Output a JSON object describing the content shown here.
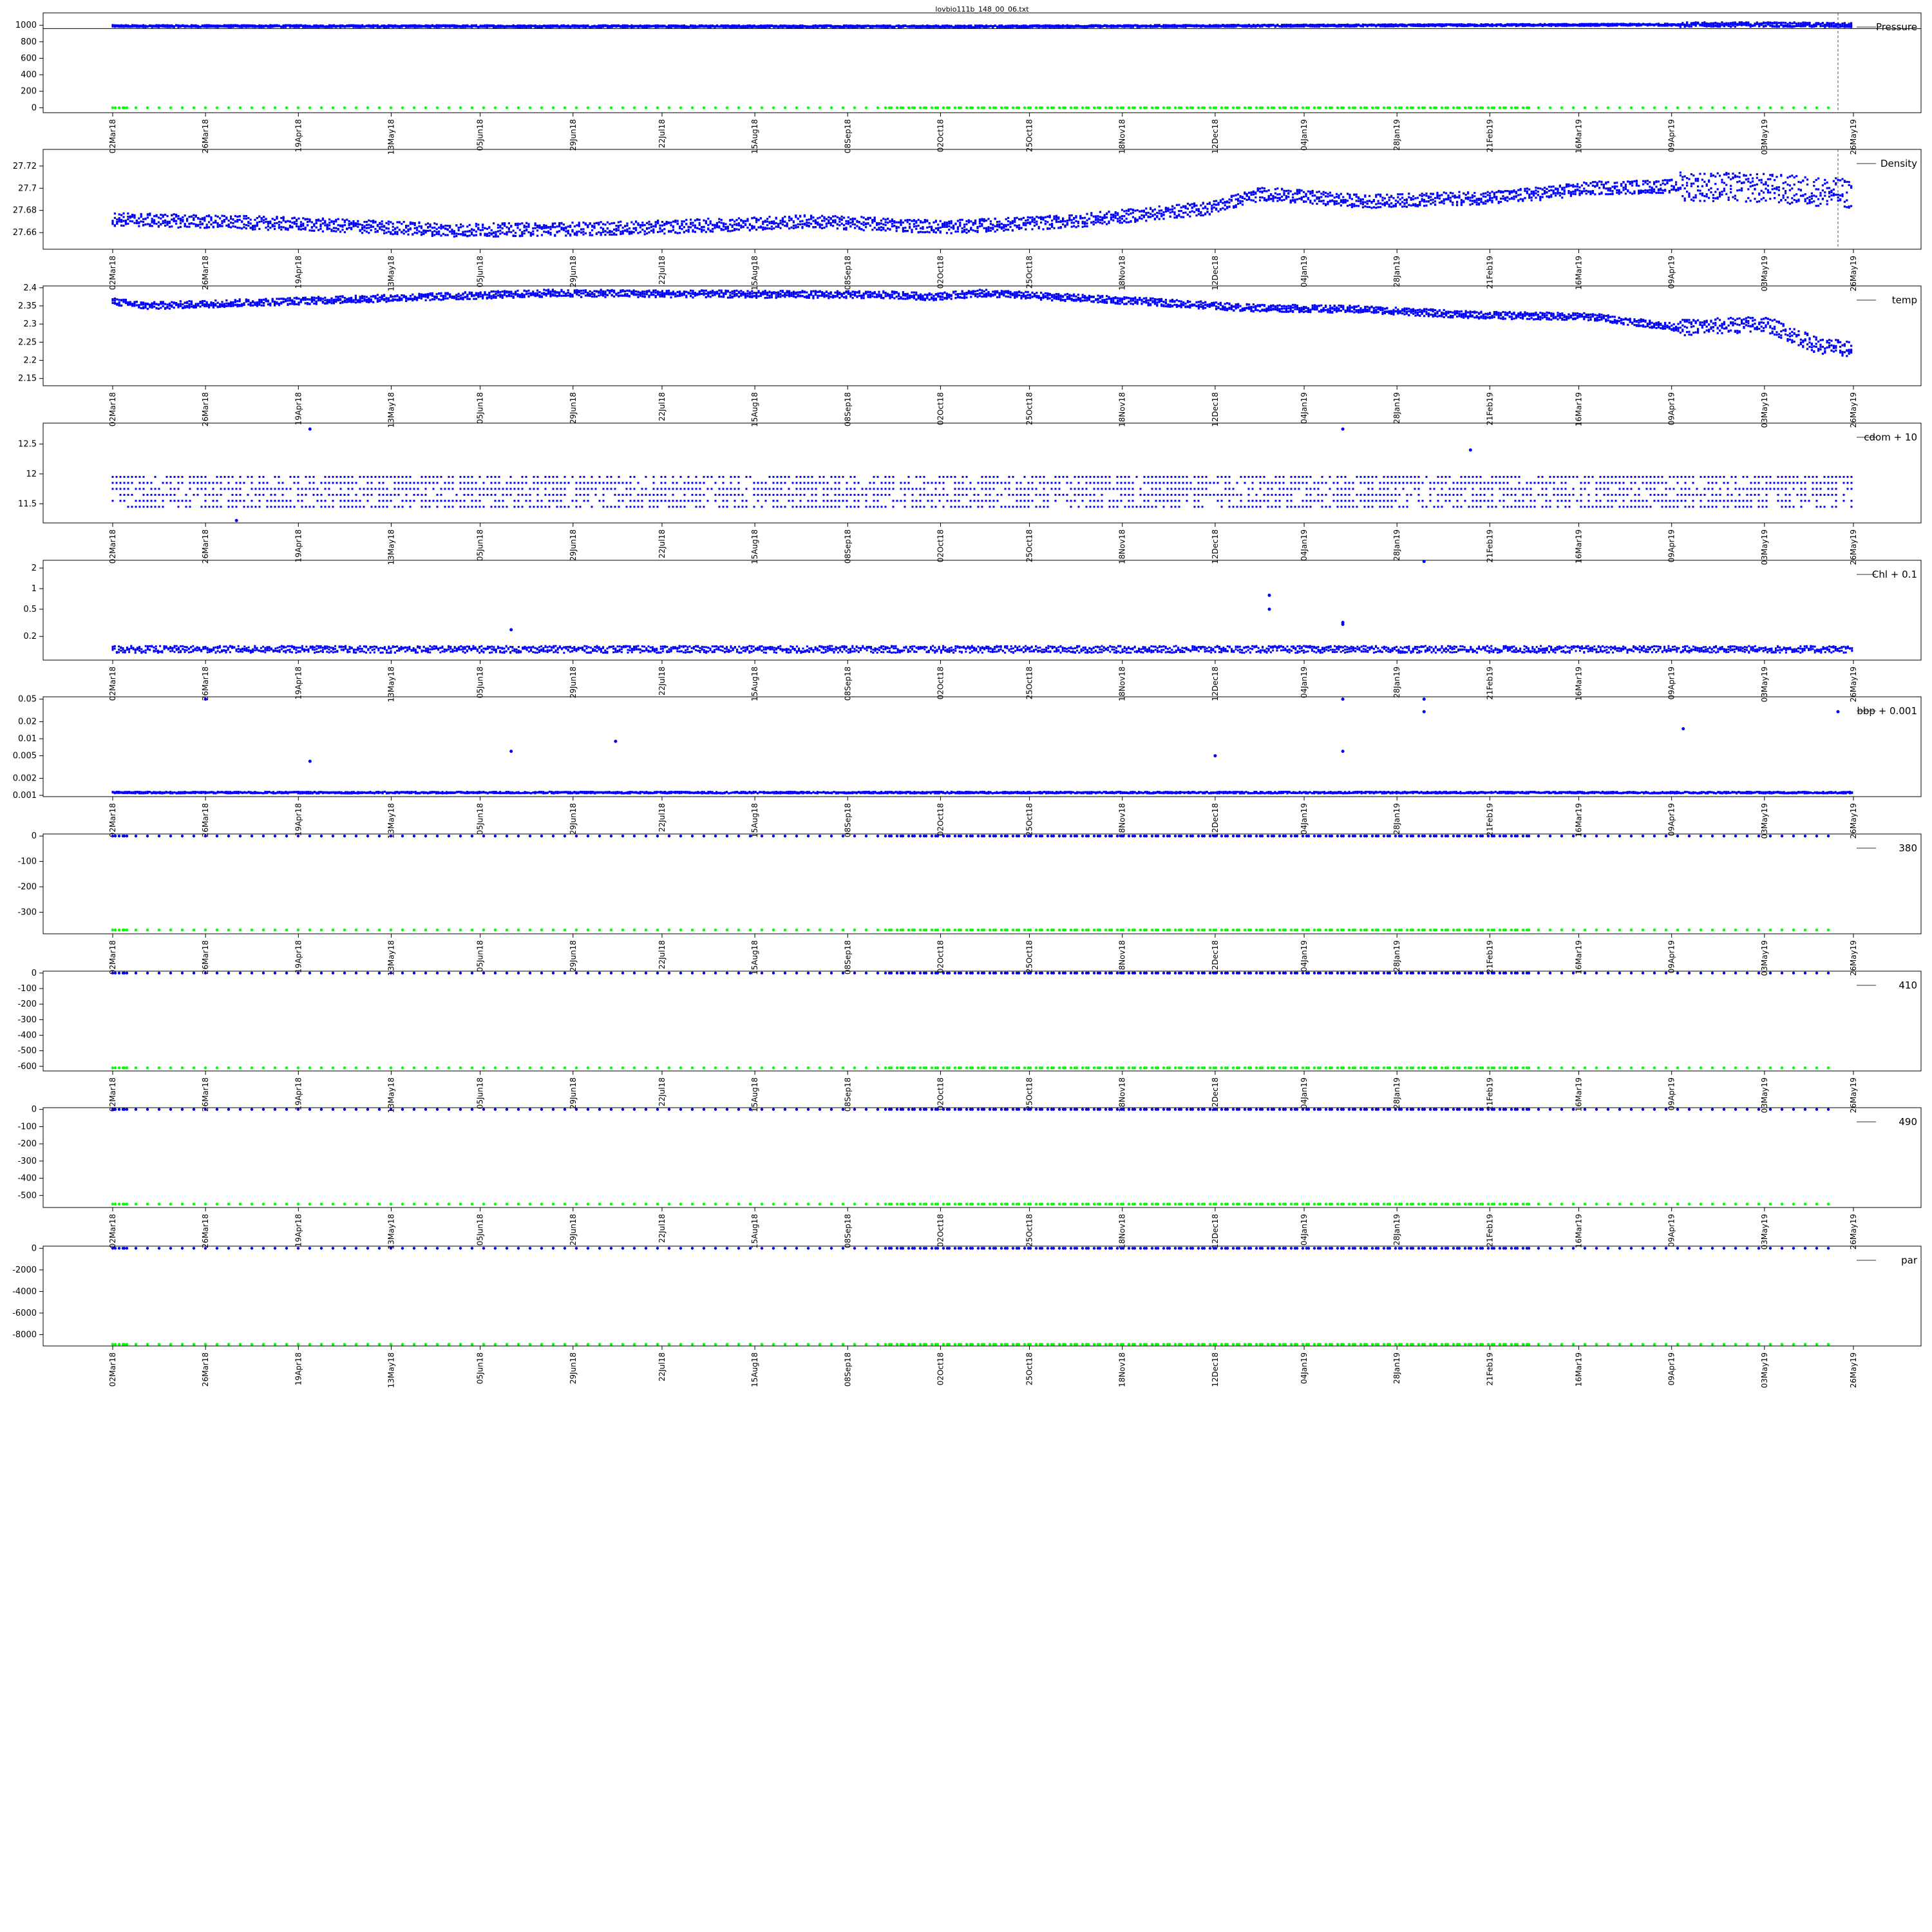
{
  "figure": {
    "title": "lovbio111b_148_00_06.txt"
  },
  "chart_data": [
    {
      "type": "scatter",
      "key": "pressure",
      "legend": "Pressure",
      "yticks": [
        0,
        200,
        400,
        600,
        800,
        1000
      ],
      "ylim": [
        -60,
        1150
      ],
      "hline": 960,
      "vline": "2019-05-22",
      "series": [
        {
          "color": "#0000ff",
          "pattern": "band",
          "base": 990,
          "spread": 25,
          "trend": [
            [
              0,
              990
            ],
            [
              0.5,
              985
            ],
            [
              0.95,
              1010
            ],
            [
              1,
              1000
            ]
          ]
        },
        {
          "color": "#00ff00",
          "pattern": "sparse",
          "value": 0
        }
      ]
    },
    {
      "type": "scatter",
      "key": "density",
      "legend": "Density",
      "yticks": [
        27.66,
        27.68,
        27.7,
        27.72
      ],
      "ylim": [
        27.645,
        27.735
      ],
      "vline": "2019-05-22",
      "series": [
        {
          "color": "#0000ff",
          "pattern": "band",
          "spread": 0.012,
          "trend": [
            [
              0,
              27.672
            ],
            [
              0.1,
              27.668
            ],
            [
              0.2,
              27.662
            ],
            [
              0.3,
              27.664
            ],
            [
              0.4,
              27.67
            ],
            [
              0.48,
              27.665
            ],
            [
              0.55,
              27.67
            ],
            [
              0.63,
              27.682
            ],
            [
              0.66,
              27.695
            ],
            [
              0.72,
              27.688
            ],
            [
              0.8,
              27.692
            ],
            [
              0.85,
              27.7
            ],
            [
              0.9,
              27.702
            ],
            [
              0.95,
              27.7
            ],
            [
              1,
              27.695
            ]
          ]
        }
      ]
    },
    {
      "type": "scatter",
      "key": "temp",
      "legend": "temp",
      "yticks": [
        2.15,
        2.2,
        2.25,
        2.3,
        2.35,
        2.4
      ],
      "ylim": [
        2.13,
        2.405
      ],
      "series": [
        {
          "color": "#0000ff",
          "pattern": "band",
          "spread": 0.02,
          "trend": [
            [
              0,
              2.362
            ],
            [
              0.02,
              2.35
            ],
            [
              0.15,
              2.37
            ],
            [
              0.25,
              2.385
            ],
            [
              0.45,
              2.38
            ],
            [
              0.47,
              2.375
            ],
            [
              0.5,
              2.385
            ],
            [
              0.6,
              2.36
            ],
            [
              0.65,
              2.345
            ],
            [
              0.72,
              2.34
            ],
            [
              0.78,
              2.325
            ],
            [
              0.85,
              2.32
            ],
            [
              0.9,
              2.29
            ],
            [
              0.95,
              2.3
            ],
            [
              0.98,
              2.24
            ],
            [
              1,
              2.23
            ]
          ]
        }
      ]
    },
    {
      "type": "scatter",
      "key": "cdom",
      "legend": "cdom + 10",
      "yticks": [
        11.5,
        12.0,
        12.5
      ],
      "ylim": [
        11.18,
        12.85
      ],
      "series": [
        {
          "color": "#0000ff",
          "pattern": "quantized",
          "levels": [
            11.45,
            11.55,
            11.65,
            11.75,
            11.85,
            11.95
          ]
        }
      ],
      "outliers": [
        [
          "2018-04-22",
          12.75
        ],
        [
          "2019-01-14",
          12.75
        ],
        [
          "2019-02-16",
          12.4
        ],
        [
          "2018-04-03",
          11.22
        ]
      ]
    },
    {
      "type": "scatter",
      "key": "chl",
      "legend": "Chl + 0.1",
      "log": true,
      "yticks": [
        0.2,
        0.5,
        1.0,
        2.0
      ],
      "ylim": [
        0.09,
        2.6
      ],
      "series": [
        {
          "color": "#0000ff",
          "pattern": "floor",
          "base": 0.13,
          "spread": 0.03
        }
      ],
      "outliers": [
        [
          "2018-12-26",
          0.8
        ],
        [
          "2018-12-26",
          0.5
        ],
        [
          "2019-01-14",
          0.3
        ],
        [
          "2019-01-14",
          0.32
        ],
        [
          "2019-02-04",
          2.5
        ],
        [
          "2018-06-13",
          0.25
        ]
      ]
    },
    {
      "type": "scatter",
      "key": "bbp",
      "legend": "bbp + 0.001",
      "log": true,
      "yticks": [
        0.001,
        0.002,
        0.005,
        0.01,
        0.02,
        0.05
      ],
      "ylim": [
        0.00095,
        0.055
      ],
      "series": [
        {
          "color": "#0000ff",
          "pattern": "floor",
          "base": 0.00112,
          "spread": 8e-05
        }
      ],
      "outliers": [
        [
          "2018-03-26",
          0.05
        ],
        [
          "2019-01-14",
          0.05
        ],
        [
          "2019-02-04",
          0.05
        ],
        [
          "2019-02-04",
          0.03
        ],
        [
          "2019-05-22",
          0.03
        ],
        [
          "2019-04-12",
          0.015
        ],
        [
          "2018-06-13",
          0.006
        ],
        [
          "2019-01-14",
          0.006
        ],
        [
          "2018-07-10",
          0.009
        ],
        [
          "2018-04-22",
          0.004
        ],
        [
          "2018-12-12",
          0.005
        ]
      ]
    },
    {
      "type": "scatter",
      "key": "ch380",
      "legend": "380",
      "yticks": [
        -300,
        -200,
        -100,
        0
      ],
      "ylim": [
        -385,
        8
      ],
      "series": [
        {
          "color": "#0000ff",
          "pattern": "sparse",
          "value": 0
        },
        {
          "color": "#00ff00",
          "pattern": "sparse",
          "value": -370
        }
      ]
    },
    {
      "type": "scatter",
      "key": "ch410",
      "legend": "410",
      "yticks": [
        -600,
        -500,
        -400,
        -300,
        -200,
        -100,
        0
      ],
      "ylim": [
        -630,
        12
      ],
      "series": [
        {
          "color": "#0000ff",
          "pattern": "sparse",
          "value": 0
        },
        {
          "color": "#00ff00",
          "pattern": "sparse",
          "value": -610
        }
      ]
    },
    {
      "type": "scatter",
      "key": "ch490",
      "legend": "490",
      "yticks": [
        -500,
        -400,
        -300,
        -200,
        -100,
        0
      ],
      "ylim": [
        -570,
        10
      ],
      "series": [
        {
          "color": "#0000ff",
          "pattern": "sparse",
          "value": 0
        },
        {
          "color": "#00ff00",
          "pattern": "sparse",
          "value": -550
        }
      ]
    },
    {
      "type": "scatter",
      "key": "par",
      "legend": "par",
      "yticks": [
        -8000,
        -6000,
        -4000,
        -2000,
        0
      ],
      "ylim": [
        -9050,
        200
      ],
      "series": [
        {
          "color": "#0000ff",
          "pattern": "sparse",
          "value": 0
        },
        {
          "color": "#00ff00",
          "pattern": "sparse",
          "value": -8900
        }
      ]
    }
  ],
  "x_axis": {
    "range": [
      "2018-03-02",
      "2019-05-26"
    ],
    "ticks": [
      "2018-03-02",
      "2018-03-26",
      "2018-04-19",
      "2018-05-13",
      "2018-06-05",
      "2018-06-29",
      "2018-07-22",
      "2018-08-15",
      "2018-09-08",
      "2018-10-02",
      "2018-10-25",
      "2018-11-18",
      "2018-12-12",
      "2019-01-04",
      "2019-01-28",
      "2019-02-21",
      "2019-03-16",
      "2019-04-09",
      "2019-05-03",
      "2019-05-26"
    ],
    "tick_labels": [
      "02Mar18",
      "26Mar18",
      "19Apr18",
      "13May18",
      "05Jun18",
      "29Jun18",
      "22Jul18",
      "15Aug18",
      "08Sep18",
      "02Oct18",
      "25Oct18",
      "18Nov18",
      "12Dec18",
      "04Jan19",
      "28Jan19",
      "21Feb19",
      "16Mar19",
      "09Apr19",
      "03May19",
      "26May19"
    ]
  }
}
